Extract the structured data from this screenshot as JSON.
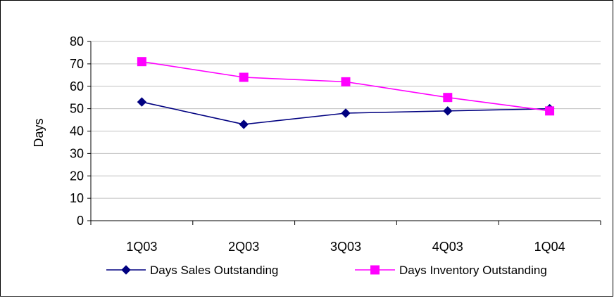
{
  "chart_data": {
    "type": "line",
    "title": "",
    "xlabel": "",
    "ylabel": "Days",
    "categories": [
      "1Q03",
      "2Q03",
      "3Q03",
      "4Q03",
      "1Q04"
    ],
    "ylim": [
      0,
      80
    ],
    "yticks": [
      0,
      10,
      20,
      30,
      40,
      50,
      60,
      70,
      80
    ],
    "grid": true,
    "legend_position": "bottom",
    "series": [
      {
        "name": "Days Sales Outstanding",
        "values": [
          53,
          43,
          48,
          49,
          50
        ],
        "color": "#000080",
        "marker": "diamond"
      },
      {
        "name": "Days Inventory Outstanding",
        "values": [
          71,
          64,
          62,
          55,
          49
        ],
        "color": "#FF00FF",
        "marker": "square"
      }
    ]
  }
}
